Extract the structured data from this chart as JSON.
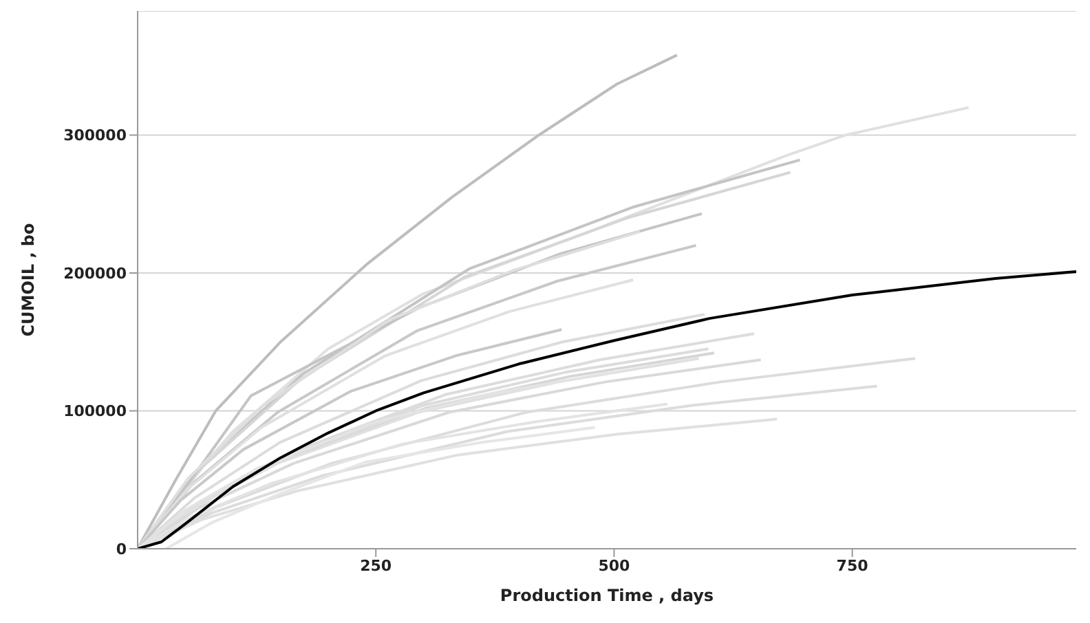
{
  "chart_data": {
    "type": "line",
    "xlabel": "Production Time , days",
    "ylabel": "CUMOIL , bo",
    "xlim": [
      0,
      985
    ],
    "xticks": [
      250,
      500,
      750
    ],
    "ylim": [
      0,
      390000
    ],
    "yticks": [
      0,
      100000,
      200000,
      300000
    ],
    "grid": "y",
    "marker": "none",
    "line_style": "solid",
    "series": [
      {
        "color": "#bdbdbd",
        "x": [
          0,
          40,
          82,
          150,
          240,
          330,
          421,
          503,
          566
        ],
        "values": [
          0,
          50000,
          100000,
          150000,
          206000,
          255000,
          300000,
          337000,
          358000
        ]
      },
      {
        "color": "#e0e0e0",
        "x": [
          0,
          50,
          100,
          200,
          300,
          474,
          680,
          743,
          872
        ],
        "values": [
          0,
          45000,
          85000,
          145000,
          185000,
          230000,
          285000,
          300000,
          320000
        ]
      },
      {
        "color": "#c4c4c4",
        "x": [
          0,
          70,
          174,
          348,
          521,
          695
        ],
        "values": [
          0,
          62000,
          127000,
          203000,
          248000,
          282000
        ]
      },
      {
        "color": "#d6d6d6",
        "x": [
          0,
          69,
          171,
          343,
          514,
          685
        ],
        "values": [
          0,
          60000,
          123000,
          197000,
          240000,
          273000
        ]
      },
      {
        "color": "#c4c4c4",
        "x": [
          0,
          59,
          119,
          296,
          444,
          592
        ],
        "values": [
          0,
          53000,
          111000,
          175000,
          214000,
          243000
        ]
      },
      {
        "color": "#c8c8c8",
        "x": [
          0,
          59,
          147,
          293,
          440,
          586
        ],
        "values": [
          0,
          48000,
          99000,
          158000,
          194000,
          220000
        ]
      },
      {
        "color": "#dedede",
        "x": [
          0,
          53,
          132,
          264,
          395,
          527
        ],
        "values": [
          0,
          51000,
          104000,
          166000,
          202000,
          230000
        ]
      },
      {
        "color": "#e0e0e0",
        "x": [
          0,
          52,
          130,
          260,
          390,
          520
        ],
        "values": [
          0,
          43000,
          88000,
          140000,
          172000,
          195000
        ]
      },
      {
        "color": "#dcdcdc",
        "x": [
          0,
          60,
          149,
          298,
          446,
          595
        ],
        "values": [
          0,
          37000,
          77000,
          122000,
          150000,
          170000
        ]
      },
      {
        "color": "#c8c8c8",
        "x": [
          0,
          45,
          111,
          223,
          334,
          445
        ],
        "values": [
          0,
          35000,
          72000,
          114000,
          140000,
          159000
        ]
      },
      {
        "color": "#dcdcdc",
        "x": [
          0,
          65,
          162,
          324,
          485,
          647
        ],
        "values": [
          0,
          34000,
          70000,
          112000,
          137000,
          156000
        ]
      },
      {
        "color": "#d6d6d6",
        "x": [
          0,
          61,
          151,
          303,
          454,
          605
        ],
        "values": [
          0,
          31000,
          64000,
          102000,
          125000,
          142000
        ]
      },
      {
        "color": "#dcdcdc",
        "x": [
          0,
          60,
          150,
          300,
          449,
          599
        ],
        "values": [
          0,
          32000,
          65000,
          104000,
          128000,
          145000
        ]
      },
      {
        "color": "#e0e0e0",
        "x": [
          0,
          59,
          147,
          295,
          442,
          589
        ],
        "values": [
          0,
          30000,
          62000,
          99000,
          121000,
          138000
        ]
      },
      {
        "color": "#d9d9d9",
        "x": [
          0,
          65,
          164,
          327,
          491,
          654
        ],
        "values": [
          0,
          30000,
          62000,
          99000,
          121000,
          137000
        ]
      },
      {
        "color": "#dcdcdc",
        "x": [
          0,
          82,
          204,
          408,
          612,
          816
        ],
        "values": [
          0,
          30000,
          62000,
          99000,
          121000,
          138000
        ]
      },
      {
        "color": "#e3e3e3",
        "x": [
          0,
          50,
          125,
          250,
          375,
          500
        ],
        "values": [
          0,
          28000,
          58000,
          92000,
          113000,
          128000
        ]
      },
      {
        "color": "#dcdcdc",
        "x": [
          0,
          78,
          194,
          388,
          582,
          776
        ],
        "values": [
          0,
          26000,
          53000,
          85000,
          104000,
          118000
        ]
      },
      {
        "color": "#e3e3e3",
        "x": [
          0,
          56,
          139,
          278,
          417,
          556
        ],
        "values": [
          0,
          23000,
          47000,
          76000,
          92000,
          105000
        ]
      },
      {
        "color": "#e0e0e0",
        "x": [
          0,
          67,
          168,
          336,
          503,
          671
        ],
        "values": [
          0,
          21000,
          42000,
          68000,
          83000,
          94000
        ]
      },
      {
        "color": "#e6e6e6",
        "x": [
          30,
          78,
          150,
          240,
          360,
          480
        ],
        "values": [
          0,
          19000,
          40000,
          63000,
          77000,
          88000
        ]
      },
      {
        "color": "#000000",
        "x": [
          0,
          25,
          50,
          100,
          150,
          200,
          250,
          300,
          400,
          500,
          600,
          750,
          900,
          985
        ],
        "values": [
          0,
          5000,
          18000,
          45000,
          66000,
          84000,
          100000,
          113000,
          134000,
          151000,
          167000,
          184000,
          196000,
          201000
        ]
      }
    ]
  }
}
